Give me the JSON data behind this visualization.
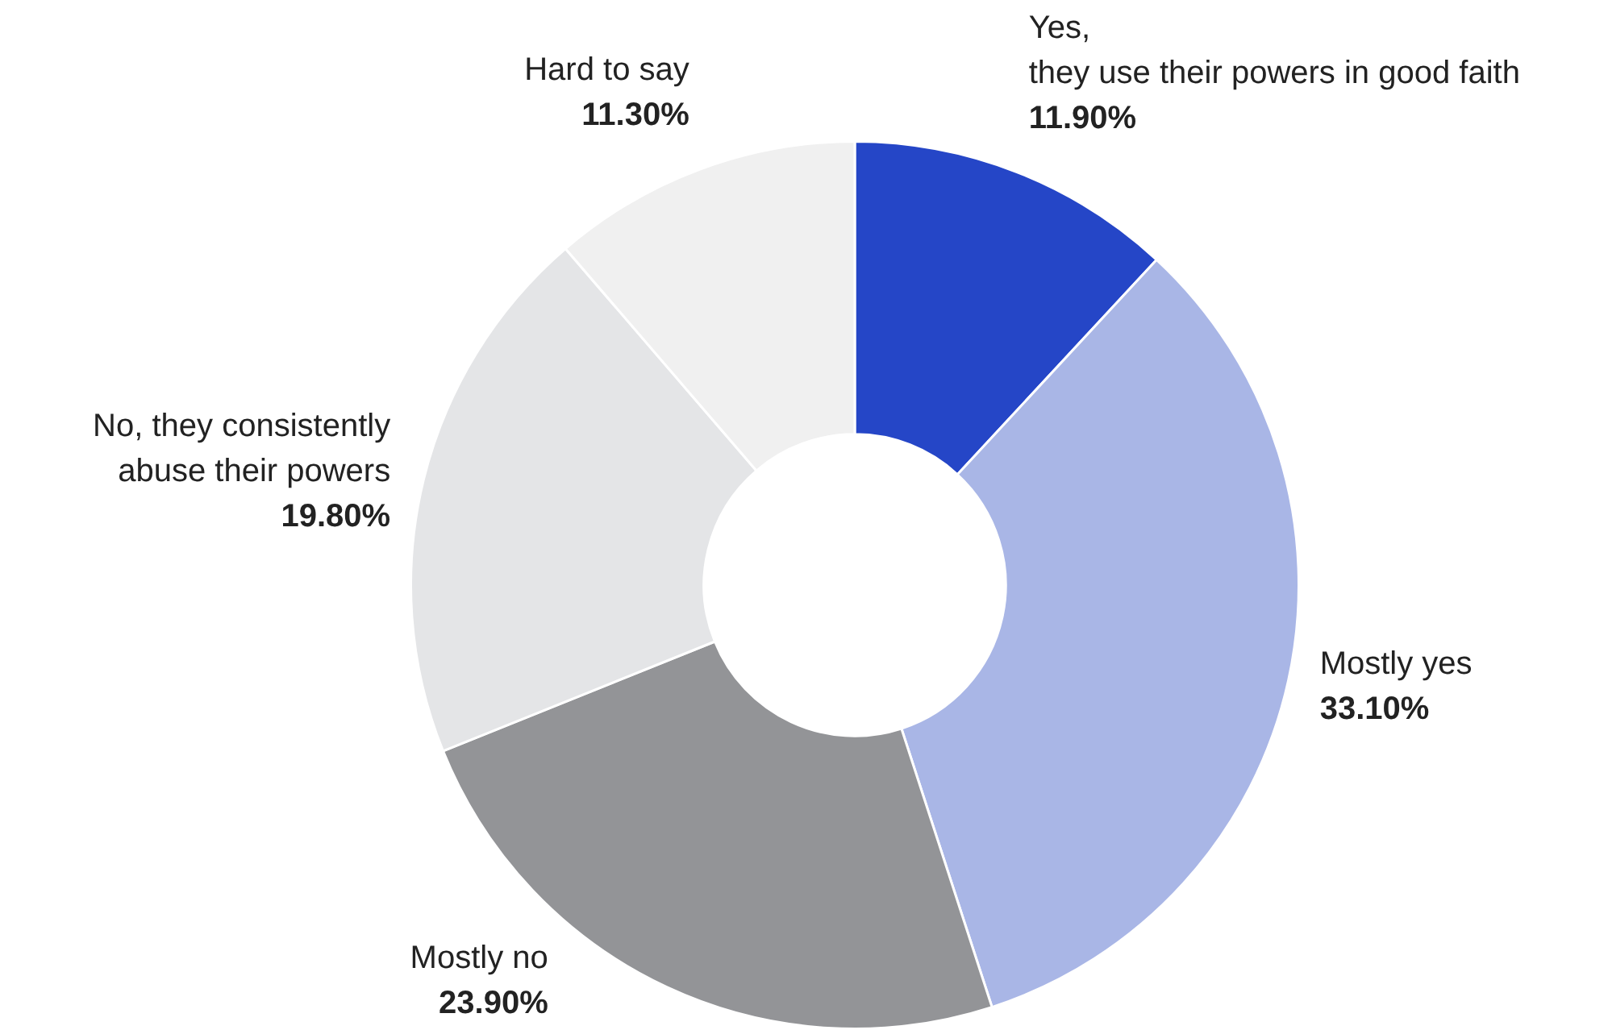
{
  "chart_data": {
    "type": "donut",
    "categories": [
      "Yes,\nthey use their powers in good faith",
      "Mostly yes",
      "Mostly no",
      "No, they consistently\nabuse their powers",
      "Hard to say"
    ],
    "values": [
      11.9,
      33.1,
      23.9,
      19.8,
      11.3
    ],
    "value_labels": [
      "11.90%",
      "33.10%",
      "23.90%",
      "19.80%",
      "11.30%"
    ],
    "colors": [
      "#2546c7",
      "#a9b6e6",
      "#939497",
      "#e4e5e7",
      "#f0f0f0"
    ],
    "legend": false
  }
}
